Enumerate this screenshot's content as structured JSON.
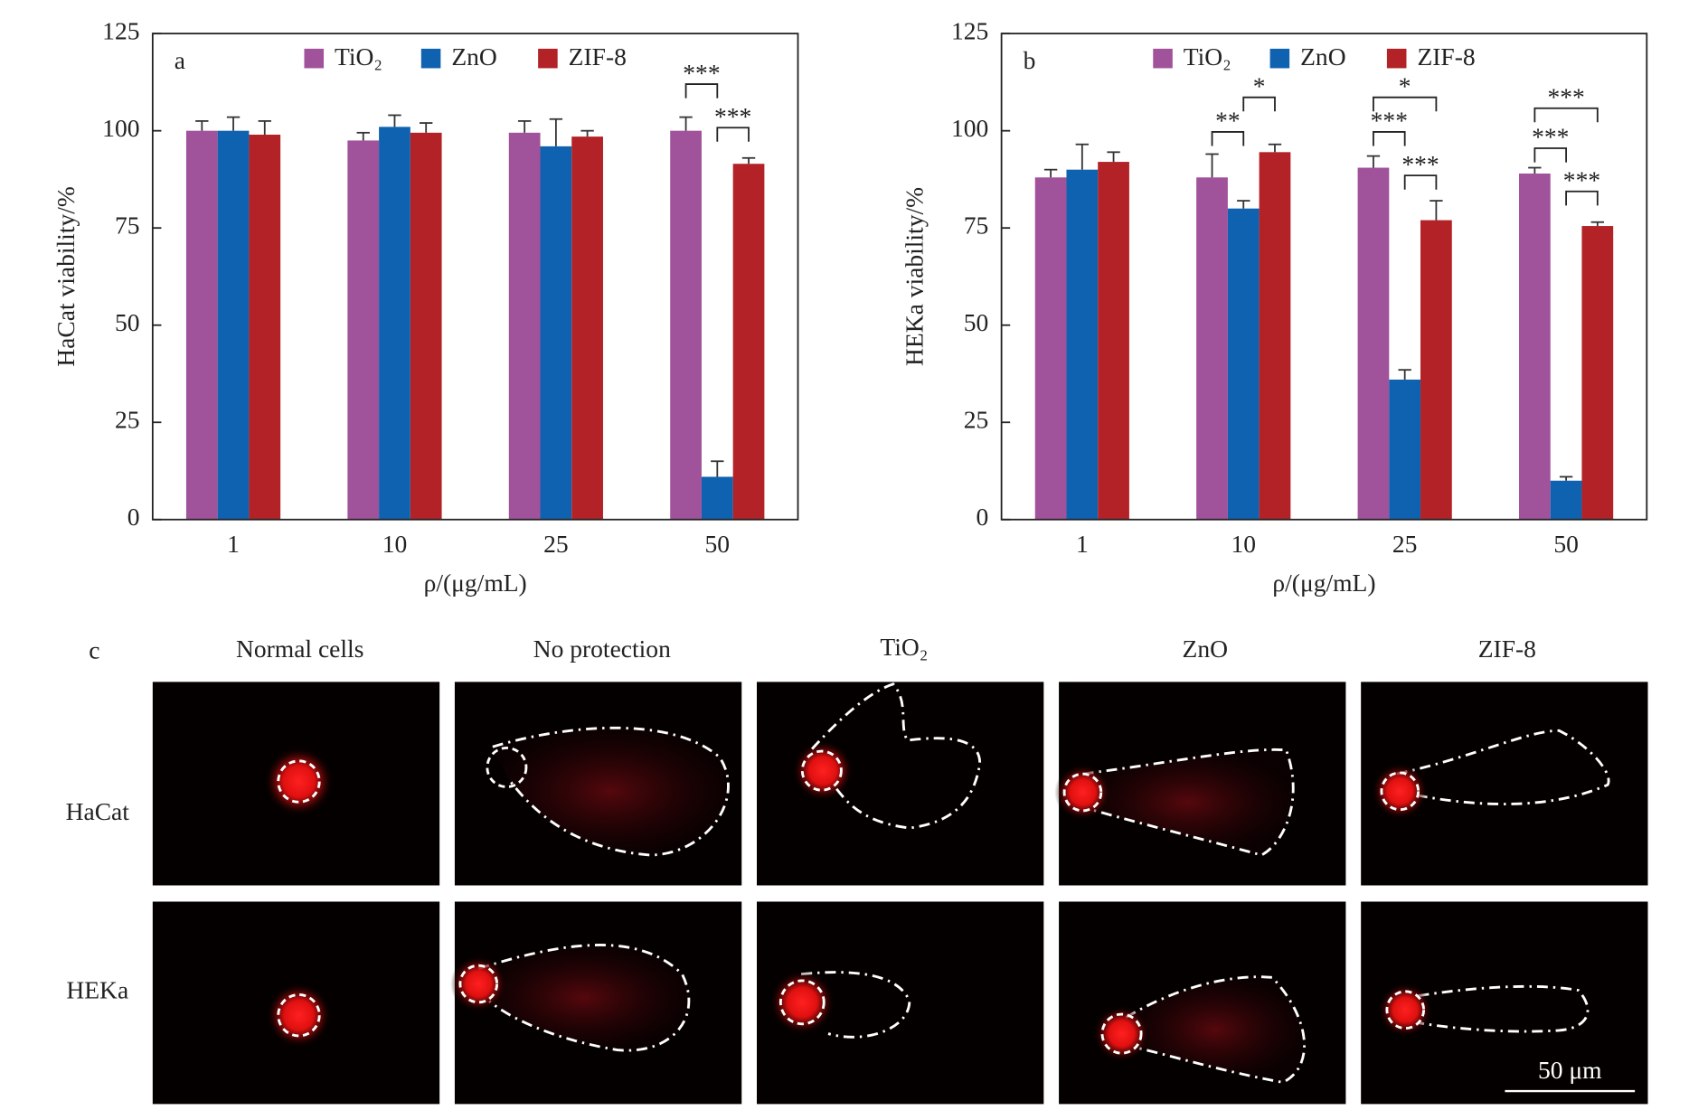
{
  "chart_data": [
    {
      "type": "bar",
      "panel_label": "a",
      "y_label": "HaCat viability/%",
      "x_label": "ρ/(μg/mL)",
      "categories": [
        "1",
        "10",
        "25",
        "50"
      ],
      "series": [
        {
          "name": "TiO₂",
          "color": "#a0529a",
          "values": [
            100,
            97.5,
            99.5,
            100
          ],
          "errors": [
            2.5,
            2,
            3,
            3.5
          ]
        },
        {
          "name": "ZnO",
          "color": "#0f62b0",
          "values": [
            100,
            101,
            96,
            11
          ],
          "errors": [
            3.5,
            3,
            7,
            4
          ]
        },
        {
          "name": "ZIF-8",
          "color": "#b22226",
          "values": [
            99,
            99.5,
            98.5,
            91.5
          ],
          "errors": [
            3.5,
            2.5,
            1.5,
            1.5
          ]
        }
      ],
      "ylim": [
        0,
        125
      ],
      "yticks": [
        0,
        25,
        50,
        75,
        100,
        125
      ],
      "annotations": [
        "***",
        "***"
      ]
    },
    {
      "type": "bar",
      "panel_label": "b",
      "y_label": "HEKa viability/%",
      "x_label": "ρ/(μg/mL)",
      "categories": [
        "1",
        "10",
        "25",
        "50"
      ],
      "series": [
        {
          "name": "TiO₂",
          "color": "#a0529a",
          "values": [
            88,
            88,
            90.5,
            89
          ],
          "errors": [
            2,
            6,
            3,
            1.5
          ]
        },
        {
          "name": "ZnO",
          "color": "#0f62b0",
          "values": [
            90,
            80,
            36,
            10
          ],
          "errors": [
            6.5,
            2,
            2.5,
            1
          ]
        },
        {
          "name": "ZIF-8",
          "color": "#b22226",
          "values": [
            92,
            94.5,
            77,
            75.5
          ],
          "errors": [
            2.5,
            2,
            5,
            1
          ]
        }
      ],
      "ylim": [
        0,
        125
      ],
      "yticks": [
        0,
        25,
        50,
        75,
        100,
        125
      ],
      "annotations": [
        "**",
        "*",
        "*",
        "***",
        "***",
        "***",
        "***",
        "***"
      ]
    }
  ],
  "figure_c": {
    "panel_label": "c",
    "columns": [
      "Normal cells",
      "No protection",
      "TiO₂",
      "ZnO",
      "ZIF-8"
    ],
    "rows": [
      "HaCat",
      "HEKa"
    ],
    "scale_bar": "50 μm"
  }
}
